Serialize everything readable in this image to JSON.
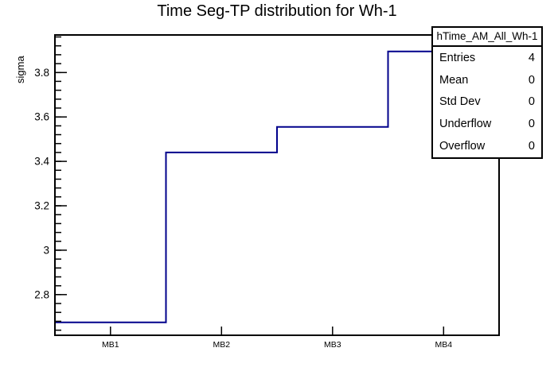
{
  "chart_data": {
    "type": "step-histogram",
    "title": "Time Seg-TP distribution for Wh-1",
    "xlabel": "",
    "ylabel": "sigma",
    "categories": [
      "MB1",
      "MB2",
      "MB3",
      "MB4"
    ],
    "values": [
      2.675,
      3.44,
      3.555,
      3.895
    ],
    "ylim": [
      2.617,
      3.969
    ],
    "yticks": [
      2.8,
      3,
      3.2,
      3.4,
      3.6,
      3.8
    ],
    "minor_tick_step": 0.04,
    "grid": false,
    "legend": false,
    "line_color": "#00008b",
    "axis_color": "#000000",
    "background_color": "#ffffff"
  },
  "stats_box": {
    "header": "hTime_AM_All_Wh-1",
    "rows": [
      {
        "label": "Entries",
        "value": "4"
      },
      {
        "label": "Mean",
        "value": "0"
      },
      {
        "label": "Std Dev",
        "value": "0"
      },
      {
        "label": "Underflow",
        "value": "0"
      },
      {
        "label": "Overflow",
        "value": "0"
      }
    ]
  }
}
